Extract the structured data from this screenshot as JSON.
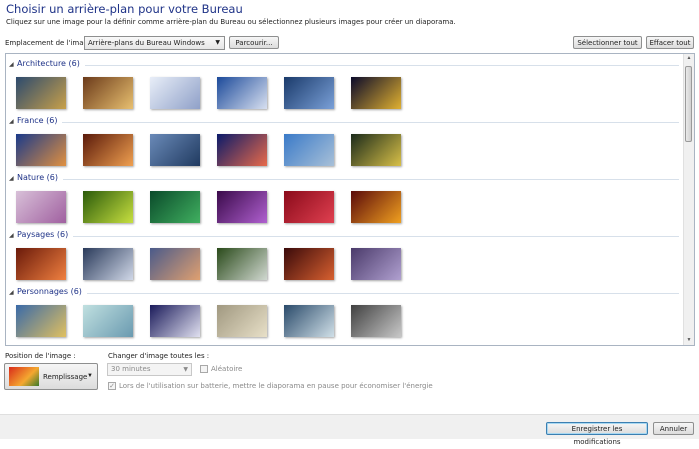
{
  "header": {
    "title": "Choisir un arrière-plan pour votre Bureau",
    "subtitle": "Cliquez sur une image pour la définir comme arrière-plan du Bureau ou sélectionnez plusieurs images pour créer un diaporama."
  },
  "location": {
    "label": "Emplacement de l'image :",
    "selected": "Arrière-plans du Bureau Windows",
    "browse_label": "Parcourir...",
    "select_all_label": "Sélectionner tout",
    "clear_all_label": "Effacer tout"
  },
  "groups": [
    {
      "name": "Architecture (6)",
      "colors": [
        [
          "#2c4a6e",
          "#c8a04a"
        ],
        [
          "#6b3a1a",
          "#e8c070"
        ],
        [
          "#e8eef8",
          "#8fa0c8"
        ],
        [
          "#1c4a9a",
          "#d8e0f0"
        ],
        [
          "#1a3a6a",
          "#7aa0d8"
        ],
        [
          "#0a0a2a",
          "#e0b030"
        ]
      ]
    },
    {
      "name": "France (6)",
      "colors": [
        [
          "#1a3a8a",
          "#e09040"
        ],
        [
          "#5a1a0a",
          "#f0a050"
        ],
        [
          "#6a8ab8",
          "#203a60"
        ],
        [
          "#0a1a6a",
          "#e86a4a"
        ],
        [
          "#3a7ac8",
          "#a8c0d8"
        ],
        [
          "#1a2a1a",
          "#d8c048"
        ]
      ]
    },
    {
      "name": "Nature (6)",
      "colors": [
        [
          "#d8c0d8",
          "#a060a0"
        ],
        [
          "#2a5a0a",
          "#c8e040"
        ],
        [
          "#0a4a2a",
          "#40b060"
        ],
        [
          "#3a0a4a",
          "#b060d0"
        ],
        [
          "#8a0a1a",
          "#e04050"
        ],
        [
          "#5a0a0a",
          "#f0a020"
        ]
      ]
    },
    {
      "name": "Paysages (6)",
      "colors": [
        [
          "#6a1a0a",
          "#f08040"
        ],
        [
          "#2a3a5a",
          "#d0d8e8"
        ],
        [
          "#4a5a8a",
          "#e0a070"
        ],
        [
          "#2a4a1a",
          "#d0d8d0"
        ],
        [
          "#3a0a0a",
          "#d86030"
        ],
        [
          "#4a3a6a",
          "#b0a0d0"
        ]
      ]
    },
    {
      "name": "Personnages (6)",
      "colors": [
        [
          "#3a6aa8",
          "#e0c060"
        ],
        [
          "#c0e0e0",
          "#6a9ab0"
        ],
        [
          "#1a1a5a",
          "#e0e0f0"
        ],
        [
          "#a09880",
          "#e8e0c8"
        ],
        [
          "#2a4a6a",
          "#d0e0e8"
        ],
        [
          "#404040",
          "#c8c8c8"
        ]
      ]
    }
  ],
  "position": {
    "label": "Position de l'image :",
    "value": "Remplissage"
  },
  "interval": {
    "label": "Changer d'image toutes les :",
    "value": "30 minutes"
  },
  "shuffle": {
    "label": "Aléatoire",
    "checked": false
  },
  "battery": {
    "label": "Lors de l'utilisation sur batterie, mettre le diaporama en pause pour économiser l'énergie",
    "checked": true
  },
  "footer": {
    "save_label": "Enregistrer les modifications",
    "cancel_label": "Annuler"
  }
}
